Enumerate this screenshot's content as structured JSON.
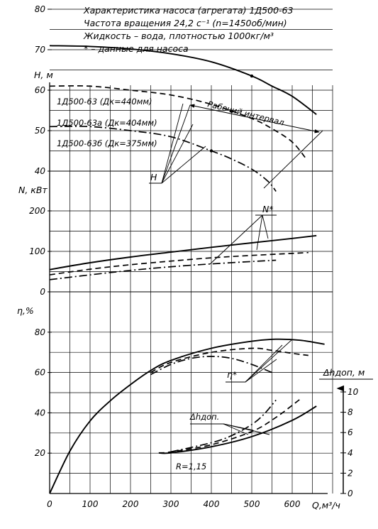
{
  "header": {
    "lines": [
      "Характеристика насоса (агрегата) 1Д500-63",
      "Частота вращения 24,2 с⁻¹ (n=1450об/мин)",
      "Жидкость – вода, плотностью 1000кг/м³",
      "* – данные для насоса"
    ]
  },
  "chart_data": [
    {
      "type": "line",
      "panel": "head",
      "ylabel": "H, м",
      "xlabel": "Q,м³/ч",
      "xlim": [
        0,
        700
      ],
      "ylim": [
        35,
        82
      ],
      "yticks": [
        "40",
        "50",
        "60",
        "70",
        "80"
      ],
      "annotations": [
        "Рабочий интервал",
        "H"
      ],
      "series": [
        {
          "name": "1Д500-63 (Дк=440мм)",
          "style": "solid",
          "x": [
            0,
            100,
            200,
            300,
            400,
            500,
            550,
            600,
            660
          ],
          "y": [
            71,
            70.8,
            70.2,
            69,
            67,
            63.5,
            61,
            58.5,
            54
          ]
        },
        {
          "name": "1Д500-63а (Дк=404мм)",
          "style": "dashed",
          "x": [
            0,
            100,
            200,
            300,
            400,
            500,
            550,
            600,
            635
          ],
          "y": [
            61,
            61,
            60,
            58.8,
            56.5,
            53,
            50.5,
            47.2,
            43
          ]
        },
        {
          "name": "1Д500-63б (Дк=375мм)",
          "style": "dashdot",
          "x": [
            0,
            100,
            200,
            300,
            400,
            450,
            500,
            540,
            560
          ],
          "y": [
            51,
            51,
            50,
            48.5,
            45,
            43,
            40.5,
            37.5,
            35
          ]
        }
      ]
    },
    {
      "type": "line",
      "panel": "power",
      "ylabel": "N, кВт",
      "xlim": [
        0,
        700
      ],
      "ylim": [
        0,
        210
      ],
      "yticks": [
        "0",
        "100",
        "200"
      ],
      "annotations": [
        "N*"
      ],
      "series": [
        {
          "style": "solid",
          "x": [
            0,
            100,
            200,
            300,
            400,
            500,
            600,
            660
          ],
          "y": [
            55,
            72,
            86,
            98,
            110,
            121,
            132,
            139
          ]
        },
        {
          "style": "dashed",
          "x": [
            0,
            100,
            200,
            300,
            400,
            500,
            600,
            640
          ],
          "y": [
            42,
            56,
            67,
            76,
            84,
            90,
            95,
            97
          ]
        },
        {
          "style": "dashdot",
          "x": [
            0,
            100,
            200,
            300,
            400,
            500,
            560
          ],
          "y": [
            30,
            42,
            53,
            62,
            69,
            75,
            78
          ]
        }
      ]
    },
    {
      "type": "line",
      "panel": "efficiency",
      "ylabel": "η,%",
      "xlim": [
        0,
        700
      ],
      "ylim": [
        0,
        82
      ],
      "yticks": [
        "20",
        "40",
        "60",
        "80"
      ],
      "xticks": [
        "0",
        "100",
        "200",
        "300",
        "400",
        "500",
        "600"
      ],
      "annotations": [
        "η*"
      ],
      "series": [
        {
          "style": "solid",
          "x": [
            0,
            50,
            100,
            150,
            200,
            250,
            300,
            400,
            500,
            560,
            620,
            680
          ],
          "y": [
            0,
            21,
            36,
            46,
            54,
            61,
            66,
            72,
            75.5,
            76.5,
            76,
            74
          ]
        },
        {
          "style": "dashed",
          "x": [
            250,
            300,
            400,
            500,
            550,
            600,
            640
          ],
          "y": [
            60,
            65,
            70,
            72,
            71,
            69.5,
            68.5
          ]
        },
        {
          "style": "dashdot",
          "x": [
            250,
            300,
            350,
            400,
            450,
            500,
            550
          ],
          "y": [
            59,
            64,
            67,
            68,
            67,
            64,
            60
          ]
        }
      ]
    },
    {
      "type": "line",
      "panel": "npsh",
      "ylabel": "Δhдоп, м",
      "ylim": [
        0,
        10
      ],
      "yticks": [
        "0",
        "2",
        "4",
        "6",
        "8",
        "10"
      ],
      "annotations": [
        "Δhдоп.",
        "R=1,15"
      ],
      "series": [
        {
          "style": "solid",
          "x": [
            270,
            300,
            400,
            500,
            600,
            660
          ],
          "y": [
            4,
            4,
            4.6,
            5.6,
            7.2,
            8.6
          ]
        },
        {
          "style": "dashed",
          "x": [
            270,
            300,
            400,
            500,
            560,
            620
          ],
          "y": [
            4,
            4.1,
            4.8,
            6.1,
            7.5,
            9.3
          ]
        },
        {
          "style": "dashdot",
          "x": [
            300,
            400,
            450,
            500,
            530,
            560
          ],
          "y": [
            4.1,
            5,
            5.7,
            6.8,
            7.8,
            9.2
          ]
        }
      ]
    }
  ]
}
